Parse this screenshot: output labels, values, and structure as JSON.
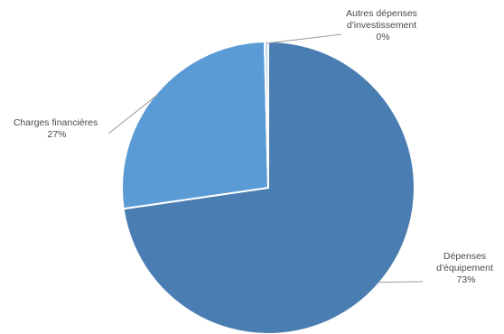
{
  "chart_data": {
    "type": "pie",
    "title": "",
    "legend": "none",
    "slices": [
      {
        "label_lines": [
          "Dépenses",
          "d'équipement"
        ],
        "pct_label": "73%",
        "value": 73,
        "color": "#4a7db1"
      },
      {
        "label_lines": [
          "Charges financières"
        ],
        "pct_label": "27%",
        "value": 27,
        "color": "#5b9bd5"
      },
      {
        "label_lines": [
          "Autres dépenses",
          "d'investissement"
        ],
        "pct_label": "0%",
        "value": 0.4,
        "color": "#bfd5ee"
      }
    ]
  }
}
